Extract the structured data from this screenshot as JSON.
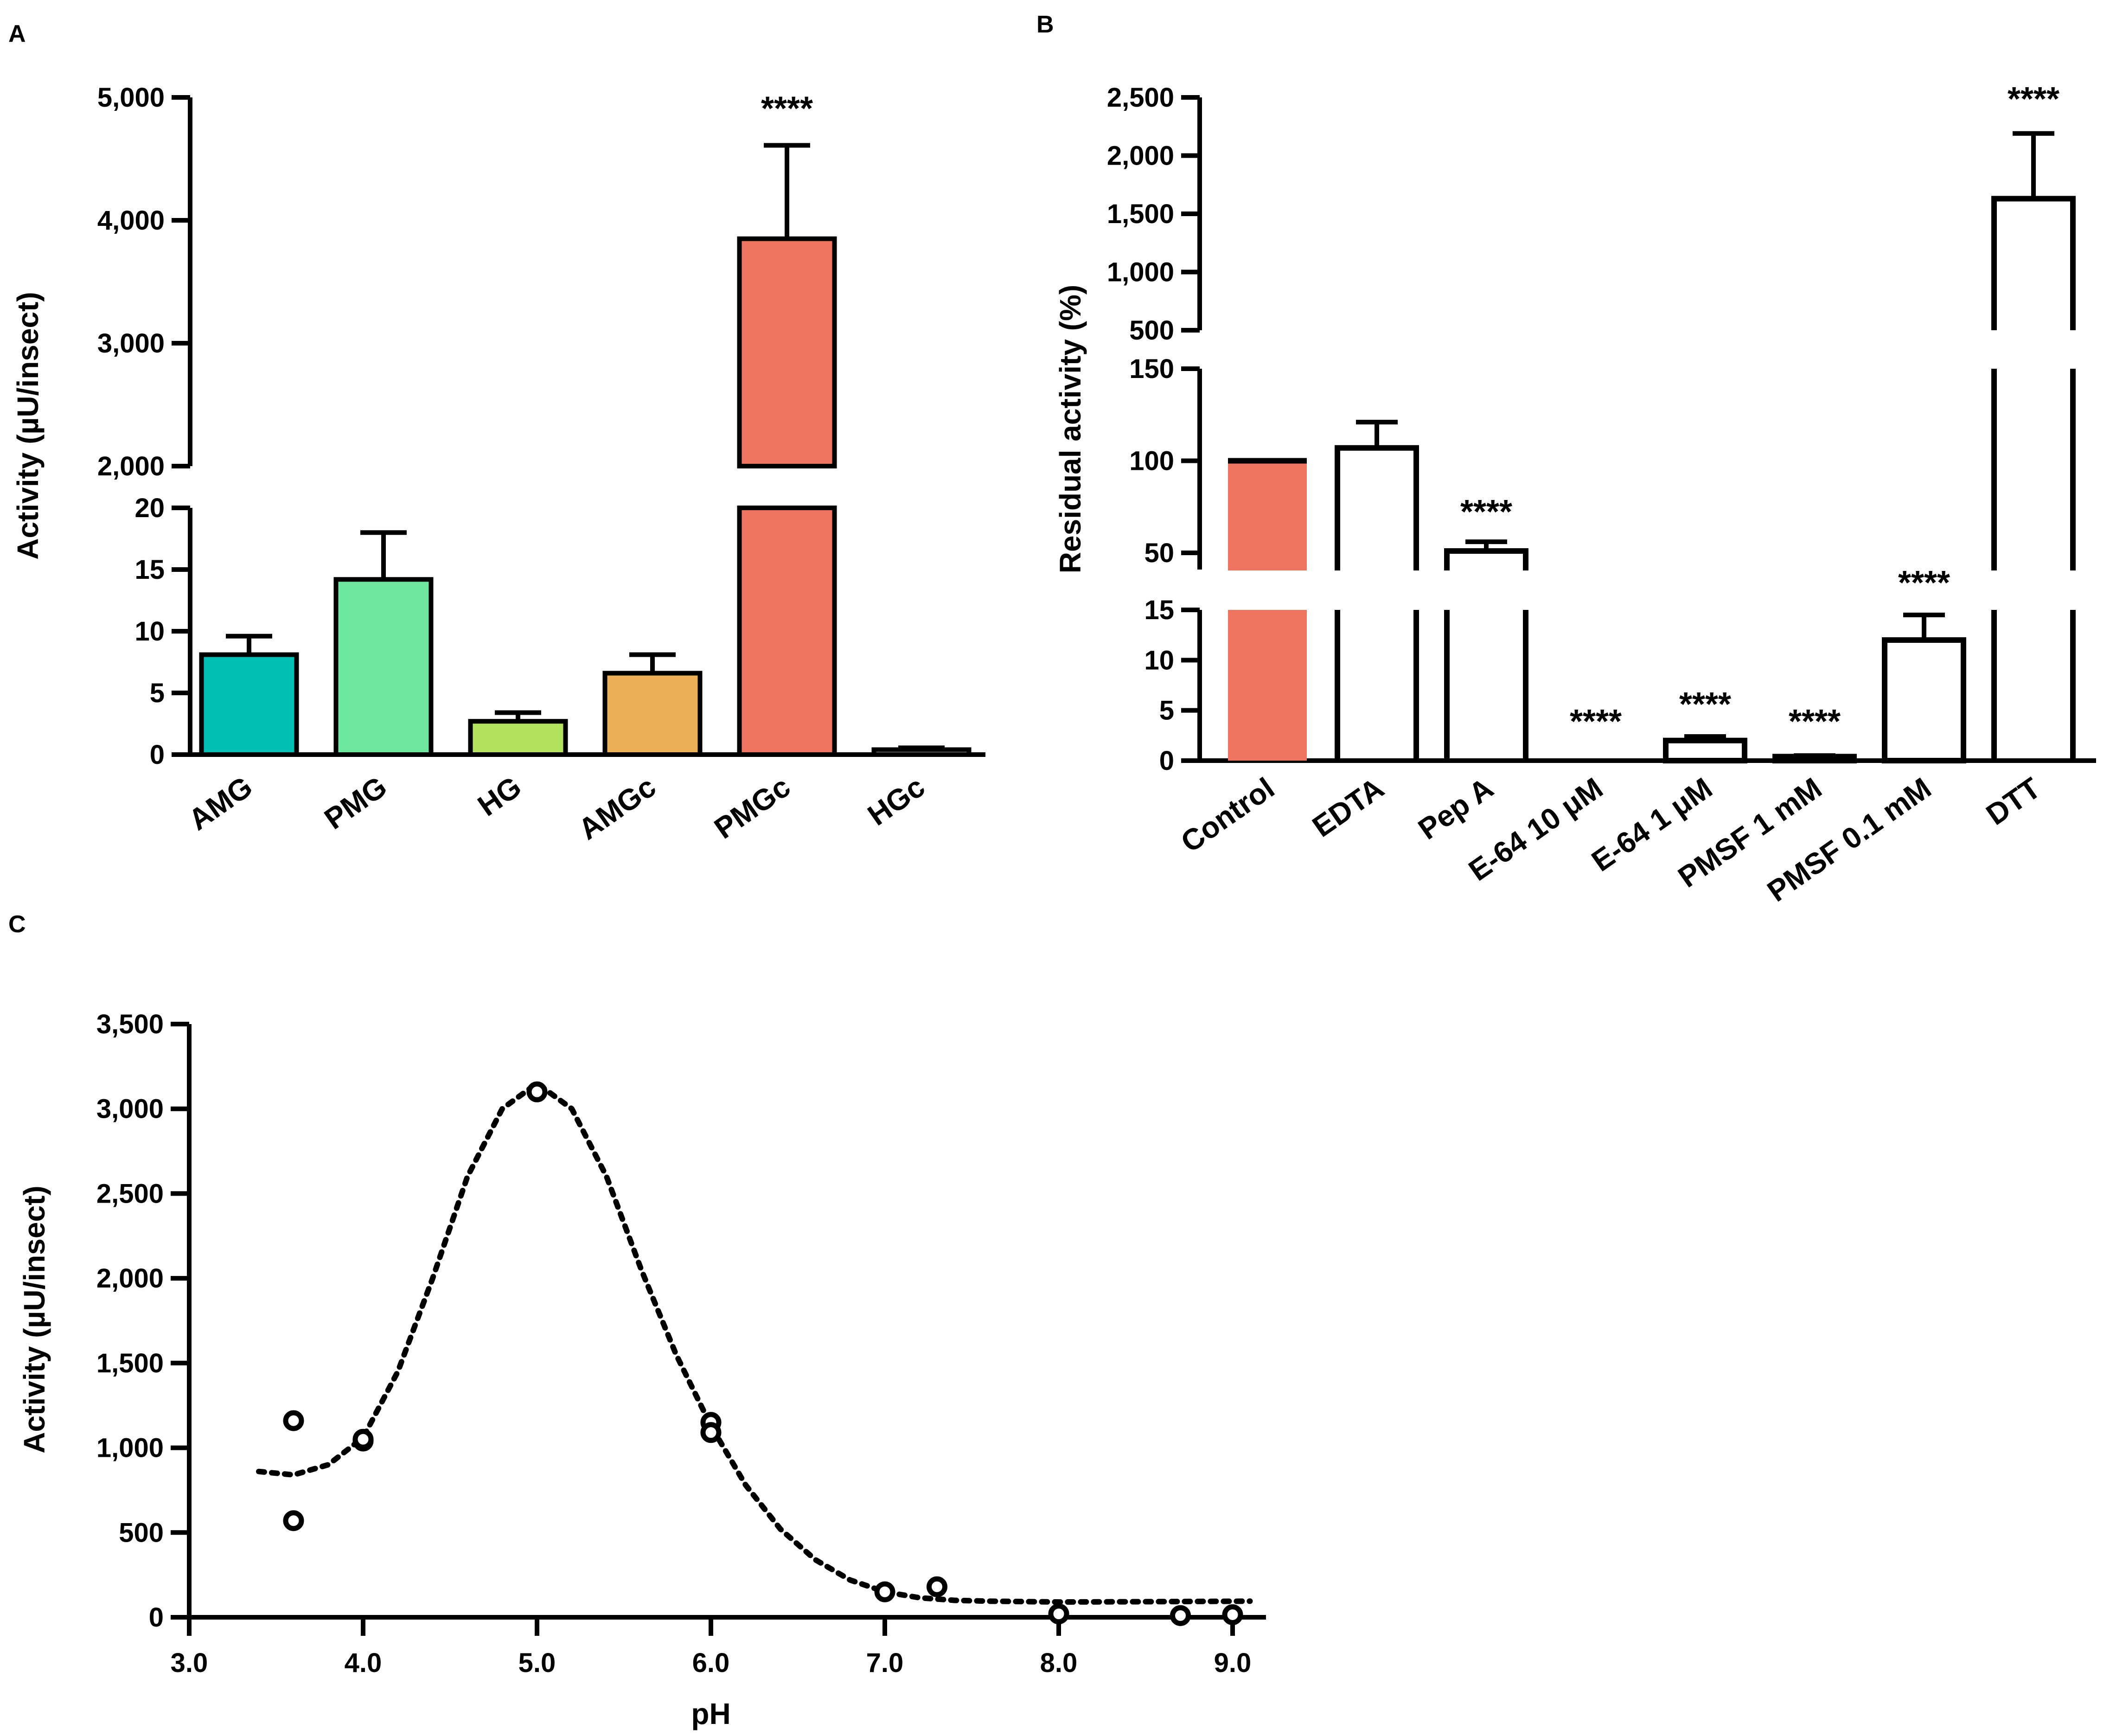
{
  "chart_data": [
    {
      "panel": "A",
      "type": "bar",
      "ylabel": "Activity (µU/insect)",
      "xlabel": "",
      "categories": [
        "AMG",
        "PMG",
        "HG",
        "AMGc",
        "PMGc",
        "HGc"
      ],
      "values": [
        8.1,
        14.2,
        2.7,
        6.6,
        3850,
        0.4
      ],
      "errors": [
        1.5,
        3.8,
        0.7,
        1.5,
        760,
        0.15
      ],
      "significance": [
        "",
        "",
        "",
        "",
        "****",
        ""
      ],
      "colors": [
        "#00c0b5",
        "#6de69e",
        "#b3e35e",
        "#ecb156",
        "#ee7460",
        "#ffffff"
      ],
      "broken_axis": {
        "lower_ylim": [
          0,
          20
        ],
        "upper_ylim": [
          2000,
          5000
        ],
        "lower_ticks": [
          "0",
          "5",
          "10",
          "15",
          "20"
        ],
        "upper_ticks": [
          "2,000",
          "3,000",
          "4,000",
          "5,000"
        ]
      }
    },
    {
      "panel": "B",
      "type": "bar",
      "ylabel": "Residual activity (%)",
      "xlabel": "",
      "categories": [
        "Control",
        "EDTA",
        "Pep A",
        "E-64 10 μM",
        "E-64 1 μM",
        "PMSF 1 mM",
        "PMSF 0.1 mM",
        "DTT"
      ],
      "values": [
        100,
        107,
        51,
        0,
        2,
        0.4,
        12,
        1630
      ],
      "errors": [
        0,
        14,
        5,
        0,
        0.4,
        0.1,
        2.5,
        560
      ],
      "significance": [
        "",
        "",
        "****",
        "****",
        "****",
        "****",
        "****",
        "****"
      ],
      "colors": [
        "#ee7460",
        "#ffffff",
        "#ffffff",
        "#ffffff",
        "#ffffff",
        "#ffffff",
        "#ffffff",
        "#ffffff"
      ],
      "broken_axis": {
        "lower_ylim": [
          0,
          15
        ],
        "middle_ylim": [
          40,
          150
        ],
        "upper_ylim": [
          500,
          2500
        ],
        "lower_ticks": [
          "0",
          "5",
          "10",
          "15"
        ],
        "middle_ticks": [
          "50",
          "100",
          "150"
        ],
        "upper_ticks": [
          "500",
          "1,000",
          "1,500",
          "2,000",
          "2,500"
        ]
      }
    },
    {
      "panel": "C",
      "type": "scatter",
      "ylabel": "Activity (µU/insect)",
      "xlabel": "pH",
      "xlim": [
        3.0,
        9.2
      ],
      "ylim": [
        0,
        3500
      ],
      "x_ticks": [
        "3.0",
        "4.0",
        "5.0",
        "6.0",
        "7.0",
        "8.0",
        "9.0"
      ],
      "y_ticks": [
        "0",
        "500",
        "1,000",
        "1,500",
        "2,000",
        "2,500",
        "3,000",
        "3,500"
      ],
      "points": {
        "x": [
          3.6,
          3.6,
          4.0,
          4.0,
          5.0,
          6.0,
          6.0,
          7.0,
          7.3,
          8.0,
          8.7,
          9.0
        ],
        "y": [
          1160,
          570,
          1040,
          1050,
          3100,
          1150,
          1090,
          150,
          180,
          20,
          10,
          15
        ]
      },
      "fit_curve": {
        "x": [
          3.4,
          3.6,
          3.8,
          4.0,
          4.2,
          4.4,
          4.6,
          4.8,
          5.0,
          5.2,
          5.4,
          5.6,
          5.8,
          6.0,
          6.2,
          6.4,
          6.6,
          6.8,
          7.0,
          7.2,
          7.4,
          7.6,
          8.0,
          8.5,
          9.1
        ],
        "y": [
          860,
          840,
          900,
          1060,
          1450,
          2000,
          2600,
          3000,
          3150,
          3000,
          2600,
          2050,
          1550,
          1130,
          780,
          520,
          340,
          220,
          150,
          115,
          100,
          95,
          90,
          92,
          95
        ]
      }
    }
  ]
}
